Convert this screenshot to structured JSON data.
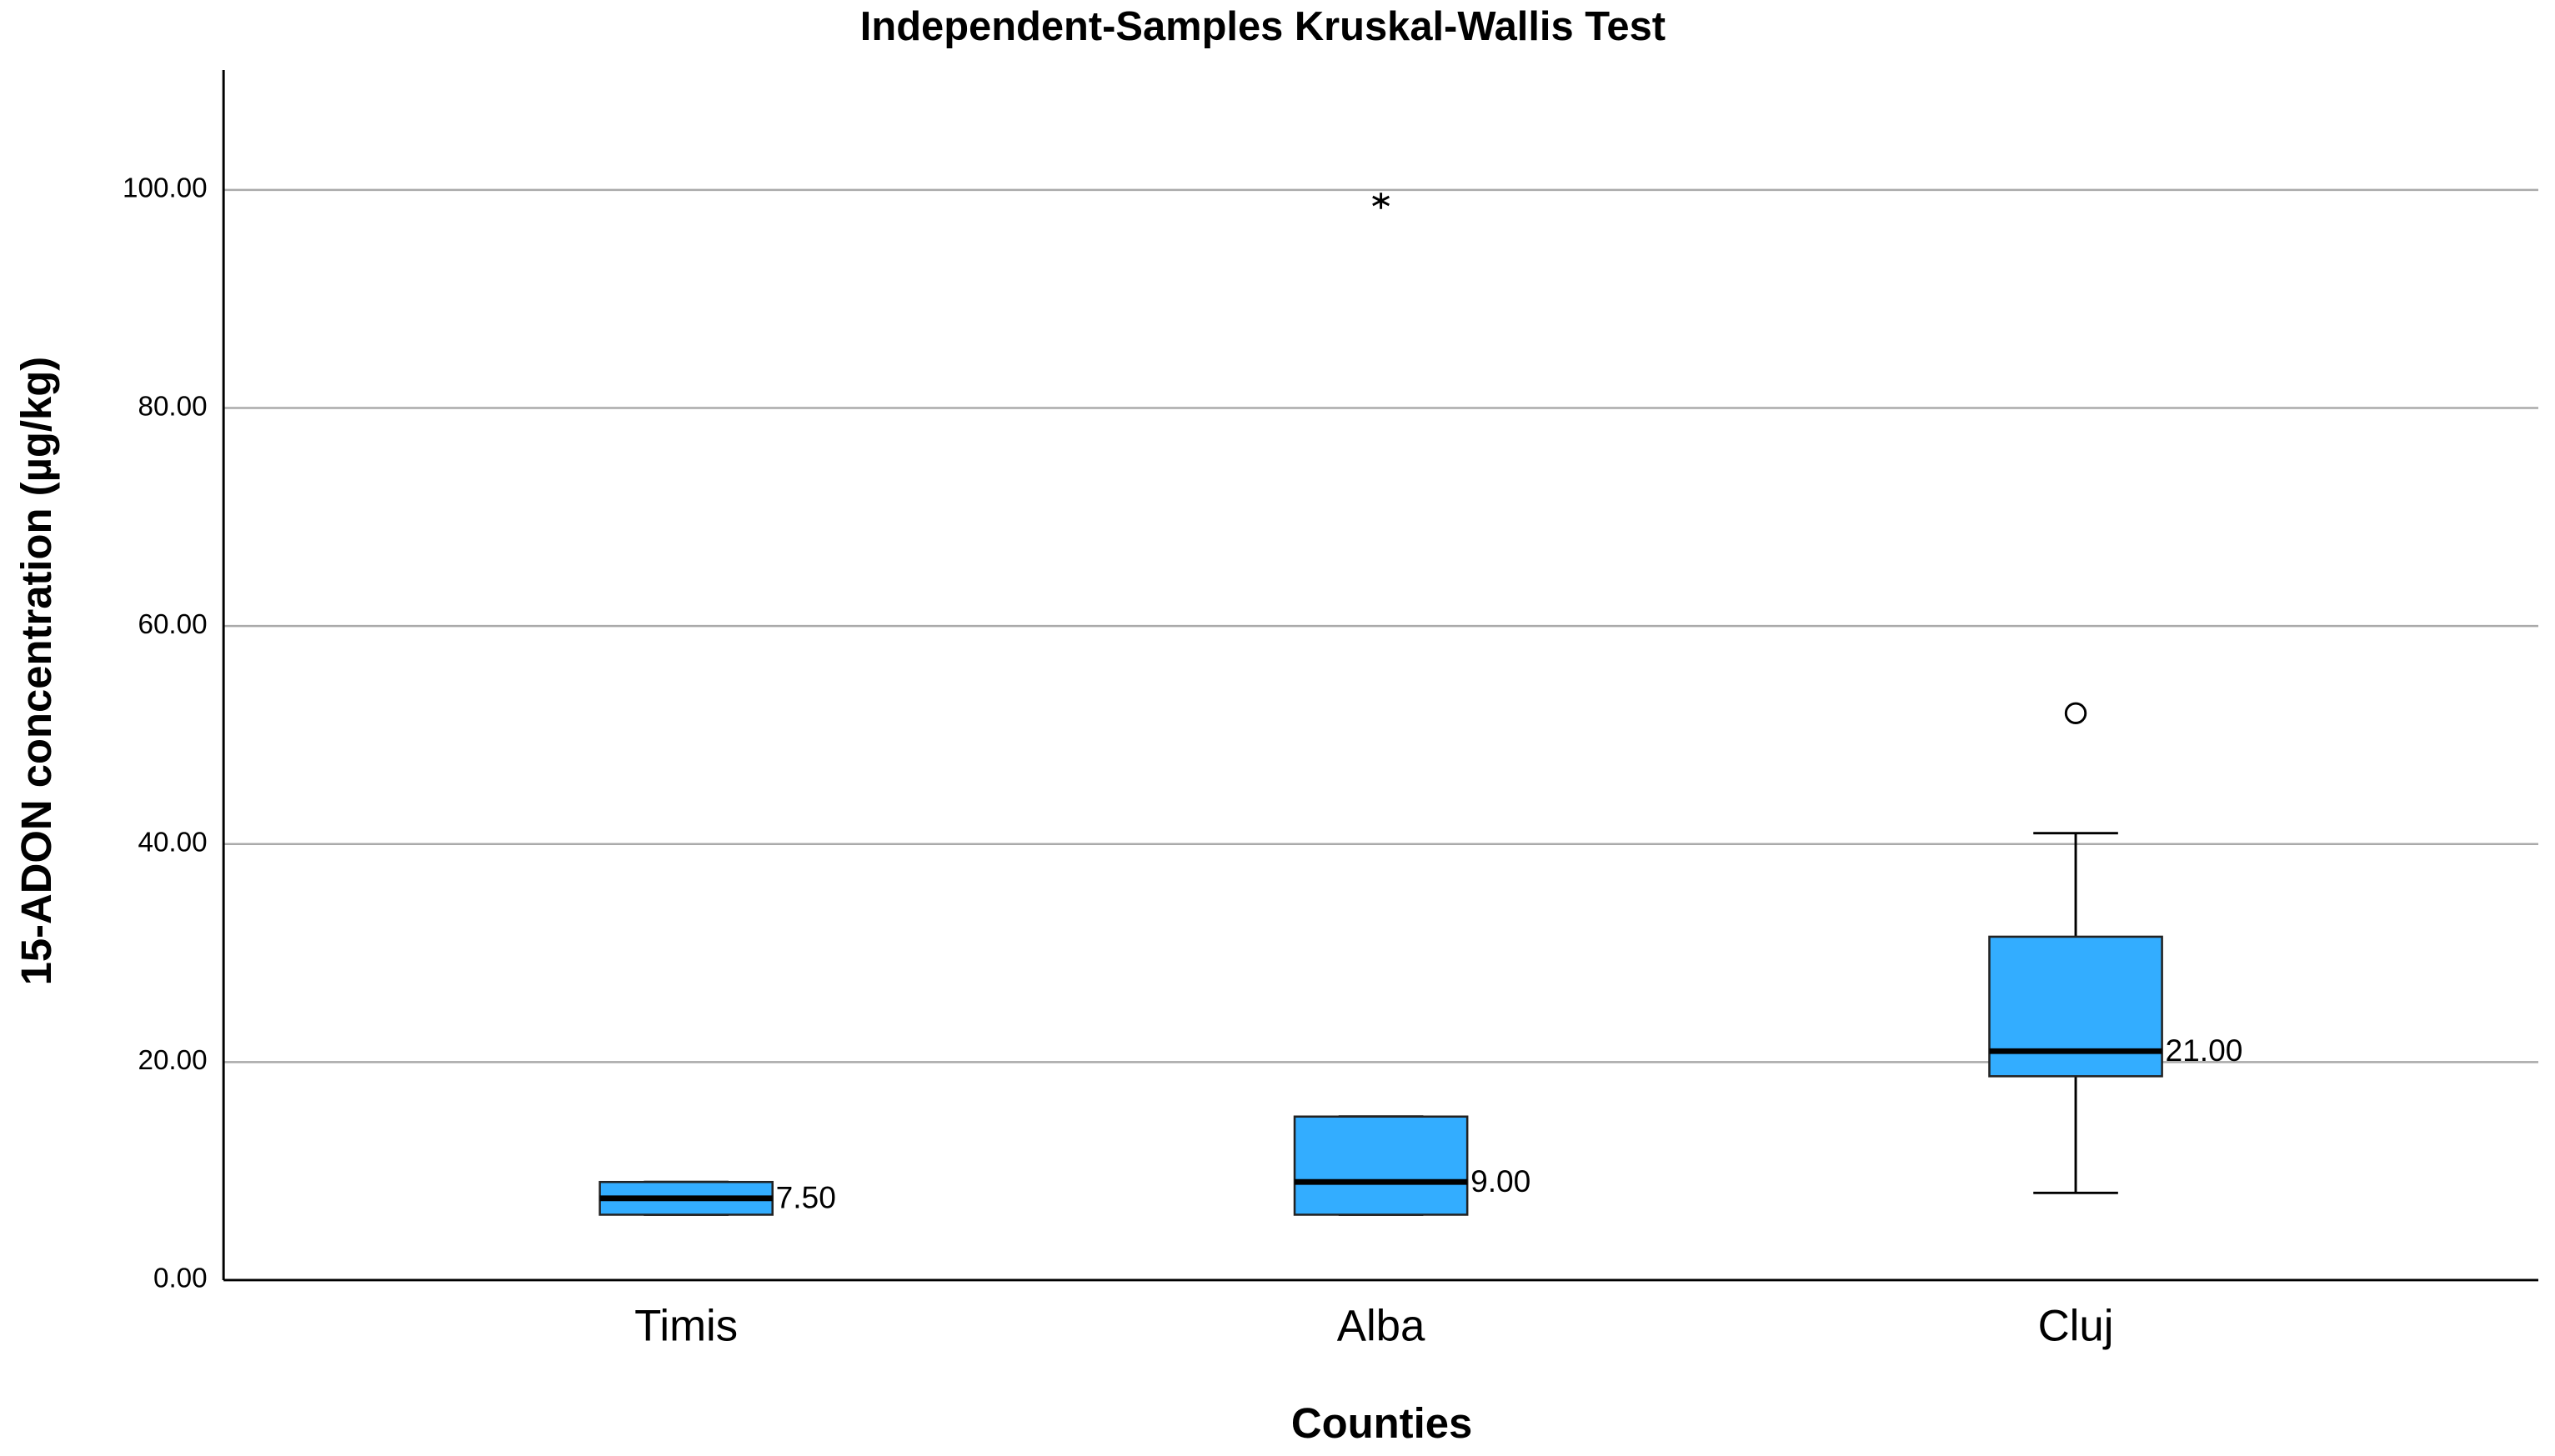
{
  "chart_data": {
    "type": "boxplot",
    "title": "Independent-Samples Kruskal-Wallis Test",
    "x_label": "Counties",
    "y_label": "15-ADON concentration (µg/kg)",
    "categories": [
      "Timis",
      "Alba",
      "Cluj"
    ],
    "boxes": [
      {
        "min": 6,
        "q1": 6,
        "median": 7.5,
        "q3": 9,
        "max": 9
      },
      {
        "min": 6,
        "q1": 6,
        "median": 9,
        "q3": 15,
        "max": 15
      },
      {
        "min": 8,
        "q1": 18.7,
        "median": 21,
        "q3": 31.5,
        "max": 41
      }
    ],
    "value_labels": [
      "7.50",
      "9.00",
      "21.00"
    ],
    "outliers": [
      [],
      [],
      [
        52
      ]
    ],
    "extremes": [
      [],
      [
        99
      ],
      []
    ],
    "color": "#33adff",
    "ylim": [
      0,
      111
    ],
    "yticks": [
      {
        "value": 0,
        "label": "0.00"
      },
      {
        "value": 20,
        "label": "20.00"
      },
      {
        "value": 40,
        "label": "40.00"
      },
      {
        "value": 60,
        "label": "60.00"
      },
      {
        "value": 80,
        "label": "80.00"
      },
      {
        "value": 100,
        "label": "100.00"
      }
    ],
    "grid": true
  }
}
